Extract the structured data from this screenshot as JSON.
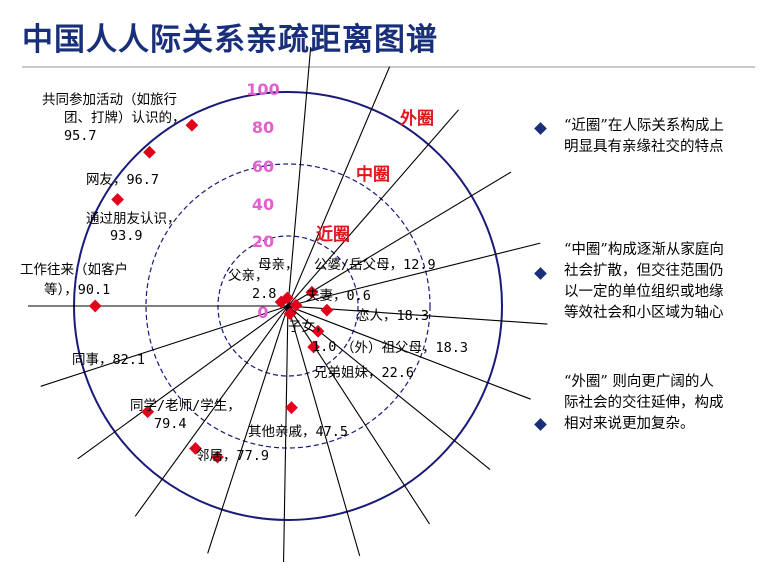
{
  "title": "中国人人际关系亲疏距离图谱",
  "scale_labels": [
    "0",
    "20",
    "40",
    "60",
    "80",
    "100"
  ],
  "ring_labels": {
    "inner": "近圈",
    "middle": "中圈",
    "outer": "外圈"
  },
  "colors": {
    "title": "#1a2f7a",
    "scale": "#e060d0",
    "ring_label": "#e0171f",
    "marker": "#e3001b",
    "spoke": "#000000",
    "ring": "#1a1a7a",
    "bullet": "#1a2f7a"
  },
  "chart_data": {
    "type": "radial",
    "range": [
      0,
      100
    ],
    "points": [
      {
        "label": "母亲，",
        "value": "",
        "distance": 2.0
      },
      {
        "label": "公婆/岳父母，",
        "value": "12.9",
        "distance": 12.9
      },
      {
        "label": "父亲，",
        "value": "2.8",
        "distance": 2.8
      },
      {
        "label": "夫妻，",
        "value": "0.6",
        "distance": 0.6
      },
      {
        "label": "恋人，",
        "value": "18.3",
        "distance": 18.3
      },
      {
        "label": "子女，",
        "value": "1.0",
        "distance": 1.0
      },
      {
        "label": "（外）祖父母，",
        "value": "18.3",
        "distance": 18.3
      },
      {
        "label": "兄弟姐妹，",
        "value": "22.6",
        "distance": 22.6
      },
      {
        "label": "其他亲戚，",
        "value": "47.5",
        "distance": 47.5
      },
      {
        "label": "邻居，",
        "value": "77.9",
        "distance": 77.9
      },
      {
        "label": "同学/老师/学生，",
        "value": "79.4",
        "distance": 79.4
      },
      {
        "label": "同事，",
        "value": "82.1",
        "distance": 82.1
      },
      {
        "label": "工作往来（如客户等），",
        "value": "90.1",
        "distance": 90.1
      },
      {
        "label": "通过朋友认识，",
        "value": "93.9",
        "distance": 93.9
      },
      {
        "label": "网友，",
        "value": "96.7",
        "distance": 96.7
      },
      {
        "label": "共同参加活动（如旅行团、打牌）认识的，",
        "value": "95.7",
        "distance": 95.7
      }
    ]
  },
  "notes": [
    {
      "text": "“近圈”在人际关系构成上\n明显具有亲缘社交的特点"
    },
    {
      "text": "“中圈”构成逐渐从家庭向\n社会扩散，但交往范围仍\n以一定的单位组织或地缘\n等效社会和小区域为轴心"
    },
    {
      "text": "“外圈” 则向更广阔的人\n际社会的交往延伸，构成\n相对来说更加复杂。"
    }
  ]
}
